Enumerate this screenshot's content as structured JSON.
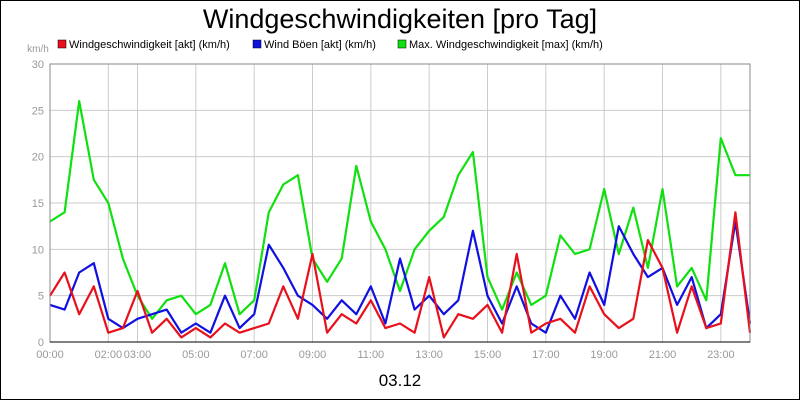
{
  "chart_data": {
    "type": "line",
    "title": "Windgeschwindigkeiten [pro Tag]",
    "ylabel": "km/h",
    "xlabel": "03.12",
    "ylim": [
      0,
      30
    ],
    "xlim": [
      0,
      24
    ],
    "y_ticks": [
      0,
      5,
      10,
      15,
      20,
      25,
      30
    ],
    "x_ticks": [
      {
        "label": "00:00",
        "hour": 0
      },
      {
        "label": "02:00",
        "hour": 2
      },
      {
        "label": "03:00",
        "hour": 3
      },
      {
        "label": "05:00",
        "hour": 5
      },
      {
        "label": "07:00",
        "hour": 7
      },
      {
        "label": "09:00",
        "hour": 9
      },
      {
        "label": "11:00",
        "hour": 11
      },
      {
        "label": "13:00",
        "hour": 13
      },
      {
        "label": "15:00",
        "hour": 15
      },
      {
        "label": "17:00",
        "hour": 17
      },
      {
        "label": "19:00",
        "hour": 19
      },
      {
        "label": "21:00",
        "hour": 21
      },
      {
        "label": "23:00",
        "hour": 23
      }
    ],
    "grid": true,
    "legend_position": "top-left",
    "series": [
      {
        "name": "Windgeschwindigkeit [akt] (km/h)",
        "color": "#e8101a",
        "x": [
          0,
          0.5,
          1,
          1.5,
          2,
          2.5,
          3,
          3.5,
          4,
          4.5,
          5,
          5.5,
          6,
          6.5,
          7,
          7.5,
          8,
          8.5,
          9,
          9.5,
          10,
          10.5,
          11,
          11.5,
          12,
          12.5,
          13,
          13.5,
          14,
          14.5,
          15,
          15.5,
          16,
          16.5,
          17,
          17.5,
          18,
          18.5,
          19,
          19.5,
          20,
          20.5,
          21,
          21.5,
          22,
          22.5,
          23,
          23.5,
          24
        ],
        "y": [
          5,
          7.5,
          3,
          6,
          1,
          1.5,
          5.5,
          1,
          2.5,
          0.5,
          1.5,
          0.5,
          2,
          1,
          1.5,
          2,
          6,
          2.5,
          9.5,
          1,
          3,
          2,
          4.5,
          1.5,
          2,
          1,
          7,
          0.5,
          3,
          2.5,
          4,
          1,
          9.5,
          1,
          2,
          2.5,
          1,
          6,
          3,
          1.5,
          2.5,
          11,
          8,
          1,
          6,
          1.5,
          2,
          14,
          1
        ]
      },
      {
        "name": "Wind Böen [akt] (km/h)",
        "color": "#1010e0",
        "x": [
          0,
          0.5,
          1,
          1.5,
          2,
          2.5,
          3,
          3.5,
          4,
          4.5,
          5,
          5.5,
          6,
          6.5,
          7,
          7.5,
          8,
          8.5,
          9,
          9.5,
          10,
          10.5,
          11,
          11.5,
          12,
          12.5,
          13,
          13.5,
          14,
          14.5,
          15,
          15.5,
          16,
          16.5,
          17,
          17.5,
          18,
          18.5,
          19,
          19.5,
          20,
          20.5,
          21,
          21.5,
          22,
          22.5,
          23,
          23.5,
          24
        ],
        "y": [
          4,
          3.5,
          7.5,
          8.5,
          2.5,
          1.5,
          2.5,
          3,
          3.5,
          1,
          2,
          1,
          5,
          1.5,
          3,
          10.5,
          8,
          5,
          4,
          2.5,
          4.5,
          3,
          6,
          2,
          9,
          3.5,
          5,
          3,
          4.5,
          12,
          5,
          2,
          6,
          2,
          1,
          5,
          2.5,
          7.5,
          4,
          12.5,
          9.5,
          7,
          8,
          4,
          7,
          1.5,
          3,
          13,
          2
        ]
      },
      {
        "name": "Max. Windgeschwindigkeit [max] (km/h)",
        "color": "#10e010",
        "x": [
          0,
          0.5,
          1,
          1.5,
          2,
          2.5,
          3,
          3.5,
          4,
          4.5,
          5,
          5.5,
          6,
          6.5,
          7,
          7.5,
          8,
          8.5,
          9,
          9.5,
          10,
          10.5,
          11,
          11.5,
          12,
          12.5,
          13,
          13.5,
          14,
          14.5,
          15,
          15.5,
          16,
          16.5,
          17,
          17.5,
          18,
          18.5,
          19,
          19.5,
          20,
          20.5,
          21,
          21.5,
          22,
          22.5,
          23,
          23.5,
          24
        ],
        "y": [
          13,
          14,
          26,
          17.5,
          15,
          9,
          5,
          2.5,
          4.5,
          5,
          3,
          4,
          8.5,
          3,
          4.5,
          14,
          17,
          18,
          9,
          6.5,
          9,
          19,
          13,
          10,
          5.5,
          10,
          12,
          13.5,
          18,
          20.5,
          7,
          3.5,
          7.5,
          4,
          5,
          11.5,
          9.5,
          10,
          16.5,
          9.5,
          14.5,
          8,
          16.5,
          6,
          8,
          4.5,
          22,
          18,
          18
        ]
      }
    ]
  }
}
